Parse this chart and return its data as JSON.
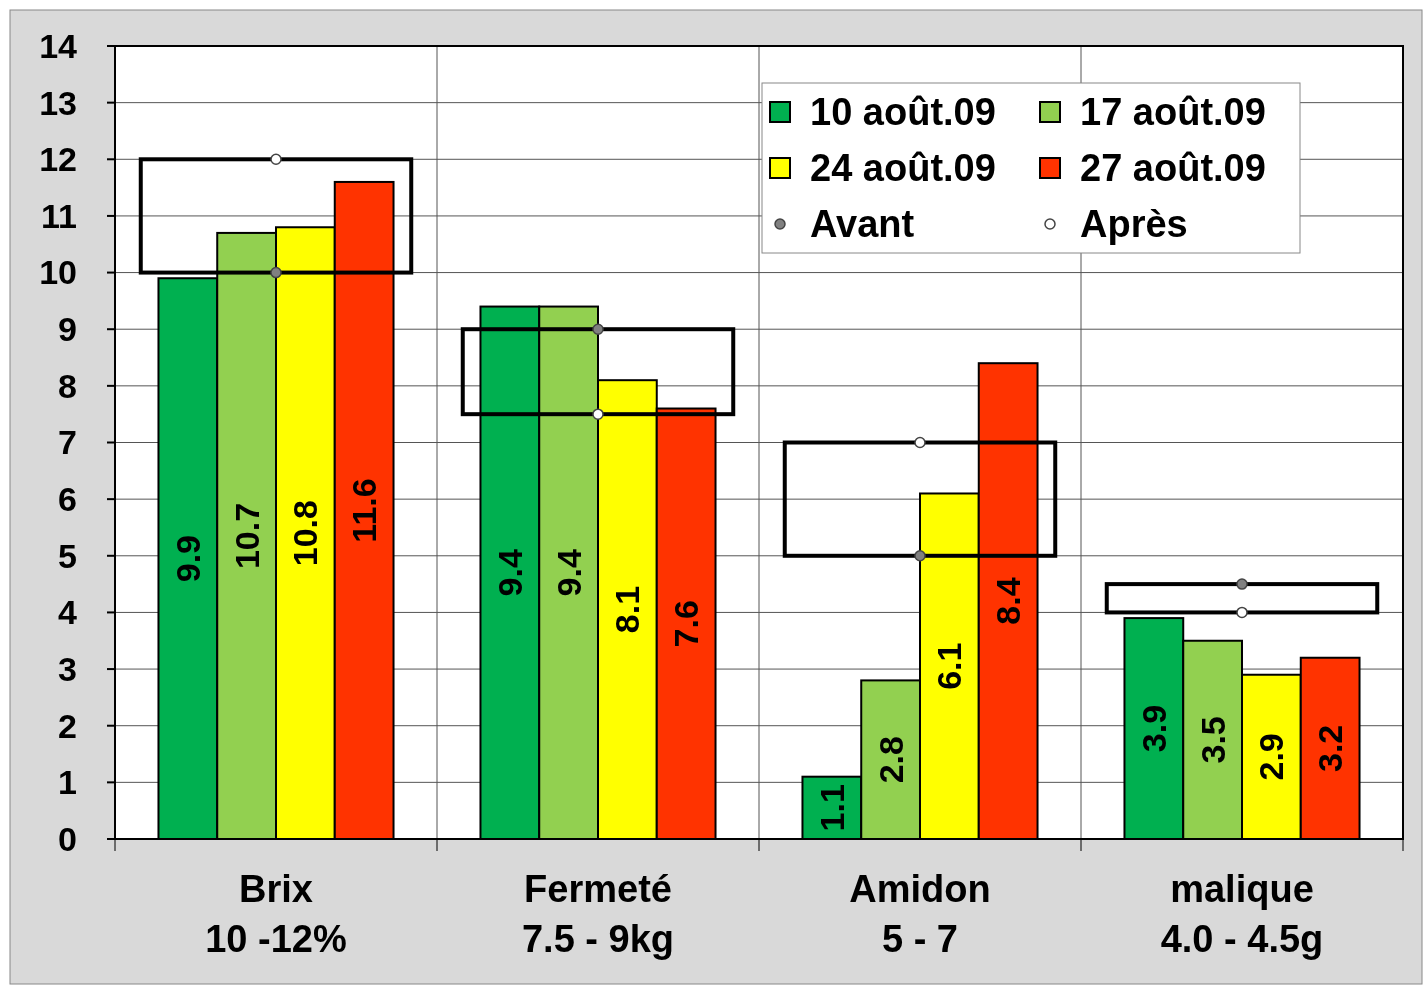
{
  "chart_data": {
    "type": "bar",
    "categories": [
      "Brix\n10 -12%",
      "Fermeté\n7.5 - 9kg",
      "Amidon\n5 - 7",
      "malique\n4.0 - 4.5g"
    ],
    "series": [
      {
        "name": "10 août.09",
        "color": "#00b050",
        "values": [
          9.9,
          9.4,
          1.1,
          3.9
        ],
        "value_labels": [
          "9.9",
          "9.4",
          "1.1",
          "3.9"
        ]
      },
      {
        "name": "17 août.09",
        "color": "#92d050",
        "values": [
          10.7,
          9.4,
          2.8,
          3.5
        ],
        "value_labels": [
          "10.7",
          "9.4",
          "2.8",
          "3.5"
        ]
      },
      {
        "name": "24 août.09",
        "color": "#ffff00",
        "values": [
          10.8,
          8.1,
          6.1,
          2.9
        ],
        "value_labels": [
          "10.8",
          "8.1",
          "6.1",
          "2.9"
        ]
      },
      {
        "name": "27 août.09",
        "color": "#ff3300",
        "values": [
          11.6,
          7.6,
          8.4,
          3.2
        ],
        "value_labels": [
          "11.6",
          "7.6",
          "8.4",
          "3.2"
        ]
      },
      {
        "name": "Avant",
        "type": "scatter",
        "color": "#808080",
        "x": [
          "Brix\n10 -12%",
          "Fermeté\n7.5 - 9kg",
          "Amidon\n5 - 7",
          "malique\n4.0 - 4.5g"
        ],
        "values": [
          10,
          9,
          5,
          4.5
        ]
      },
      {
        "name": "Après",
        "type": "scatter",
        "color": "#ffffff",
        "x": [
          "Brix\n10 -12%",
          "Fermeté\n7.5 - 9kg",
          "Amidon\n5 - 7",
          "malique\n4.0 - 4.5g"
        ],
        "values": [
          12,
          7.5,
          7,
          4.0
        ]
      }
    ],
    "ylim": [
      0,
      14
    ],
    "yticks": [
      0,
      1,
      2,
      3,
      4,
      5,
      6,
      7,
      8,
      9,
      10,
      11,
      12,
      13,
      14
    ],
    "grid": true,
    "legend": "top right",
    "marker": "circle"
  }
}
